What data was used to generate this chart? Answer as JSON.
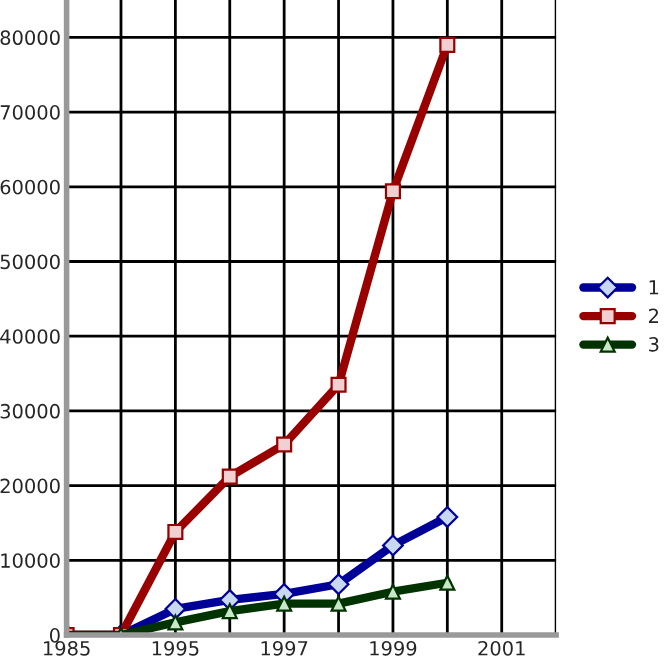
{
  "chart_data": {
    "type": "line",
    "categories": [
      "1985",
      null,
      "1995",
      null,
      "1997",
      null,
      "1999",
      null,
      "2001",
      null
    ],
    "series": [
      {
        "name": "1",
        "color": "#000099",
        "marker": "diamond",
        "values": [
          0,
          0,
          3500,
          4700,
          5500,
          6800,
          12000,
          15800,
          null,
          null
        ]
      },
      {
        "name": "2",
        "color": "#990000",
        "marker": "square",
        "values": [
          0,
          0,
          13800,
          21200,
          25500,
          33500,
          59400,
          79000,
          null,
          null
        ]
      },
      {
        "name": "3",
        "color": "#003300",
        "marker": "triangle",
        "values": [
          0,
          0,
          1700,
          3200,
          4200,
          4200,
          5800,
          7000,
          null,
          null
        ]
      }
    ],
    "ylim": [
      0,
      85000
    ],
    "yticks": [
      0,
      10000,
      20000,
      30000,
      40000,
      50000,
      60000,
      70000,
      80000
    ],
    "grid": true,
    "legend": "right"
  }
}
